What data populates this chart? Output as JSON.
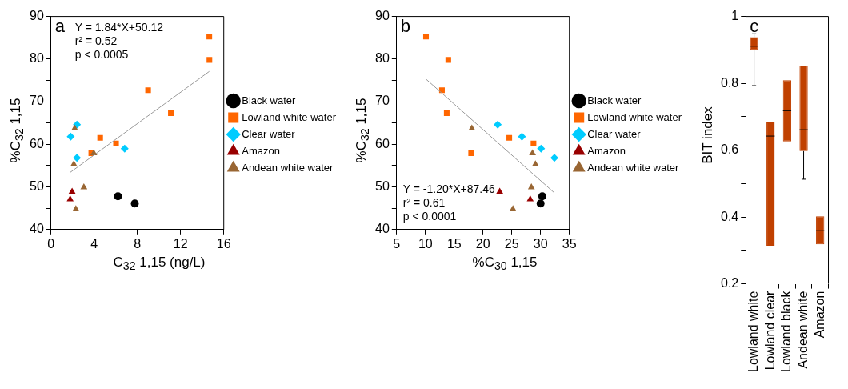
{
  "chart_data": [
    {
      "type": "scatter",
      "title": "a",
      "xlabel": "C$_{32}$ 1,15 (ng/L)",
      "ylabel": "%C$_{32}$ 1,15",
      "xlim": [
        0,
        16
      ],
      "xticks": [
        0,
        4,
        8,
        12,
        16
      ],
      "ylim": [
        40,
        90
      ],
      "yticks": [
        40,
        {
          "value": 45,
          "label": null
        },
        50,
        {
          "value": 55,
          "label": null
        },
        60,
        {
          "value": 65,
          "label": null
        },
        70,
        {
          "value": 75,
          "label": null
        },
        80,
        {
          "value": 85,
          "label": null
        },
        90
      ],
      "legend": "right",
      "grid": false,
      "annotations": [
        "Y = 1.84*X+50.12",
        "r² = 0.52",
        "p < 0.0005"
      ],
      "series": [
        {
          "name": "Black water",
          "color": "#000000",
          "marker": "circle",
          "x": [
            6.2,
            7.76
          ],
          "values": [
            47.8,
            46.1
          ]
        },
        {
          "name": "Lowland white water",
          "color": "#ff6600",
          "marker": "square",
          "x": [
            14.66,
            14.67,
            8.99,
            11.1,
            4.55,
            6.02,
            3.73
          ],
          "values": [
            85.3,
            79.8,
            72.7,
            67.3,
            61.5,
            60.2,
            57.9
          ]
        },
        {
          "name": "Clear water",
          "color": "#00ccff",
          "marker": "diamond",
          "x": [
            1.82,
            2.4,
            2.4,
            6.82
          ],
          "values": [
            61.8,
            64.6,
            56.8,
            59.0
          ]
        },
        {
          "name": "Amazon",
          "color": "#990000",
          "marker": "triangle",
          "x": [
            1.95,
            1.77
          ],
          "values": [
            48.9,
            47.1
          ]
        },
        {
          "name": "Andean white water",
          "color": "#996633",
          "marker": "triangle",
          "x": [
            2.19,
            2.11,
            3.96,
            3.04,
            2.3
          ],
          "values": [
            63.7,
            55.3,
            57.9,
            49.9,
            44.8
          ]
        },
        {
          "type": "line",
          "color": "#999999",
          "x": [
            1.77,
            14.66
          ],
          "values": [
            53.4,
            77.1
          ]
        }
      ]
    },
    {
      "type": "scatter",
      "title": "b",
      "xlabel": "%C$_{30}$ 1,15",
      "ylabel": "%C$_{32}$ 1,15",
      "xlim": [
        5,
        35
      ],
      "xticks": [
        5,
        10,
        15,
        20,
        25,
        30,
        35
      ],
      "ylim": [
        40,
        90
      ],
      "yticks": [
        40,
        {
          "value": 45,
          "label": null
        },
        50,
        {
          "value": 55,
          "label": null
        },
        60,
        {
          "value": 65,
          "label": null
        },
        70,
        {
          "value": 75,
          "label": null
        },
        80,
        {
          "value": 85,
          "label": null
        },
        90
      ],
      "legend": "right",
      "grid": false,
      "annotations": [
        "Y = -1.20*X+87.46",
        "r² = 0.61",
        "p < 0.0001"
      ],
      "series": [
        {
          "name": "Black water",
          "color": "#000000",
          "marker": "circle",
          "x": [
            30.3,
            30.0
          ],
          "values": [
            47.8,
            46.1
          ]
        },
        {
          "name": "Lowland white water",
          "color": "#ff6600",
          "marker": "square",
          "x": [
            10.1,
            13.97,
            12.87,
            13.7,
            17.94,
            24.56,
            28.77
          ],
          "values": [
            85.3,
            79.8,
            72.7,
            67.3,
            57.9,
            61.5,
            60.2
          ]
        },
        {
          "name": "Clear water",
          "color": "#00ccff",
          "marker": "diamond",
          "x": [
            22.55,
            26.76,
            30.08,
            32.4
          ],
          "values": [
            64.6,
            61.8,
            59.0,
            56.8
          ]
        },
        {
          "name": "Amazon",
          "color": "#990000",
          "marker": "triangle",
          "x": [
            22.9,
            28.2
          ],
          "values": [
            48.9,
            47.1
          ]
        },
        {
          "name": "Andean white water",
          "color": "#996633",
          "marker": "triangle",
          "x": [
            18.06,
            28.6,
            29.1,
            28.4,
            25.2
          ],
          "values": [
            63.7,
            57.9,
            55.3,
            49.9,
            44.8
          ]
        },
        {
          "type": "line",
          "color": "#999999",
          "x": [
            10.1,
            32.4
          ],
          "values": [
            75.3,
            48.6
          ]
        }
      ]
    },
    {
      "type": "box",
      "title": "c",
      "ylabel": "BIT index",
      "categories": [
        "Lowland white",
        "Lowland clear",
        "Lowland black",
        "Andean white",
        "Amazon"
      ],
      "color": "#c04000",
      "ylim": [
        0.2,
        1
      ],
      "yticks": [
        0.2,
        {
          "value": 0.3,
          "label": null
        },
        0.4,
        {
          "value": 0.5,
          "label": null
        },
        0.6,
        {
          "value": 0.7,
          "label": null
        },
        0.8,
        {
          "value": 0.9,
          "label": null
        },
        1
      ],
      "grid": false,
      "boxes": [
        {
          "low": 0.793,
          "q1": 0.9,
          "median": 0.911,
          "q3": 0.938,
          "high": 0.948
        },
        {
          "low": 0.314,
          "q1": 0.314,
          "median": 0.642,
          "q3": 0.683,
          "high": 0.683
        },
        {
          "low": 0.626,
          "q1": 0.626,
          "median": 0.718,
          "q3": 0.809,
          "high": 0.809
        },
        {
          "low": 0.513,
          "q1": 0.597,
          "median": 0.661,
          "q3": 0.853,
          "high": 0.853
        },
        {
          "low": 0.318,
          "q1": 0.318,
          "median": 0.359,
          "q3": 0.402,
          "high": 0.402
        }
      ]
    }
  ]
}
